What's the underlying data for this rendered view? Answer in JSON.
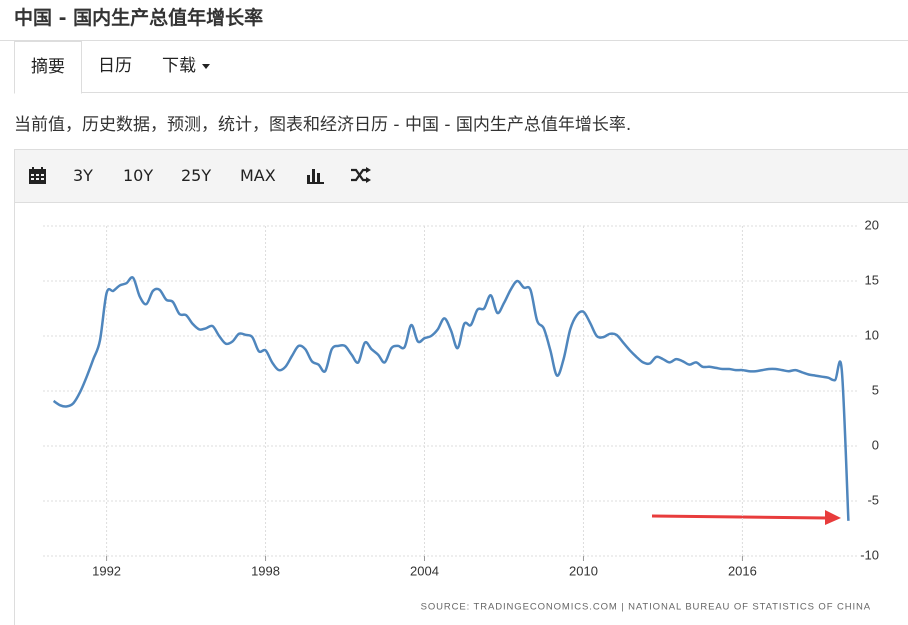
{
  "header": {
    "title": "中国 - 国内生产总值年增长率"
  },
  "tabs": [
    "摘要",
    "日历",
    "下载"
  ],
  "description": "当前值，历史数据，预测，统计，图表和经济日历 - 中国 - 国内生产总值年增长率.",
  "toolbar": [
    "3Y",
    "10Y",
    "25Y",
    "MAX"
  ],
  "chart_data": {
    "type": "line",
    "x": [
      1990,
      1990.25,
      1990.5,
      1990.75,
      1991,
      1991.25,
      1991.5,
      1991.75,
      1992,
      1992.25,
      1992.5,
      1992.75,
      1993,
      1993.25,
      1993.5,
      1993.75,
      1994,
      1994.25,
      1994.5,
      1994.75,
      1995,
      1995.25,
      1995.5,
      1995.75,
      1996,
      1996.25,
      1996.5,
      1996.75,
      1997,
      1997.25,
      1997.5,
      1997.75,
      1998,
      1998.25,
      1998.5,
      1998.75,
      1999,
      1999.25,
      1999.5,
      1999.75,
      2000,
      2000.25,
      2000.5,
      2000.75,
      2001,
      2001.25,
      2001.5,
      2001.75,
      2002,
      2002.25,
      2002.5,
      2002.75,
      2003,
      2003.25,
      2003.5,
      2003.75,
      2004,
      2004.25,
      2004.5,
      2004.75,
      2005,
      2005.25,
      2005.5,
      2005.75,
      2006,
      2006.25,
      2006.5,
      2006.75,
      2007,
      2007.25,
      2007.5,
      2007.75,
      2008,
      2008.25,
      2008.5,
      2008.75,
      2009,
      2009.25,
      2009.5,
      2009.75,
      2010,
      2010.25,
      2010.5,
      2010.75,
      2011,
      2011.25,
      2011.5,
      2011.75,
      2012,
      2012.25,
      2012.5,
      2012.75,
      2013,
      2013.25,
      2013.5,
      2013.75,
      2014,
      2014.25,
      2014.5,
      2014.75,
      2015,
      2015.25,
      2015.5,
      2015.75,
      2016,
      2016.25,
      2016.5,
      2016.75,
      2017,
      2017.25,
      2017.5,
      2017.75,
      2018,
      2018.25,
      2018.5,
      2018.75,
      2019,
      2019.25,
      2019.5,
      2019.75,
      2020
    ],
    "values": [
      4.1,
      3.7,
      3.6,
      3.9,
      4.9,
      6.3,
      7.9,
      9.6,
      13.9,
      14.1,
      14.6,
      14.8,
      15.3,
      13.6,
      12.9,
      14.1,
      14.2,
      13.3,
      13.1,
      12.0,
      11.9,
      11.1,
      10.6,
      10.7,
      10.9,
      10.0,
      9.3,
      9.5,
      10.2,
      10.1,
      9.9,
      8.6,
      8.7,
      7.6,
      6.9,
      7.2,
      8.2,
      9.1,
      8.8,
      7.7,
      7.4,
      6.8,
      8.8,
      9.1,
      9.1,
      8.3,
      7.6,
      9.4,
      8.8,
      8.3,
      7.6,
      8.9,
      9.1,
      9.0,
      11.0,
      9.5,
      9.8,
      10.0,
      10.6,
      11.6,
      10.5,
      8.9,
      11.1,
      11.0,
      12.4,
      12.5,
      13.7,
      12.1,
      13.0,
      14.2,
      15.0,
      14.4,
      14.2,
      11.4,
      10.7,
      8.7,
      6.4,
      7.9,
      10.6,
      11.9,
      12.2,
      11.2,
      10.0,
      9.9,
      10.2,
      10.1,
      9.4,
      8.7,
      8.1,
      7.6,
      7.5,
      8.1,
      7.9,
      7.6,
      7.9,
      7.7,
      7.4,
      7.6,
      7.2,
      7.2,
      7.1,
      7.0,
      7.0,
      6.9,
      6.9,
      6.8,
      6.8,
      6.9,
      7.0,
      7.0,
      6.9,
      6.8,
      6.9,
      6.7,
      6.5,
      6.4,
      6.3,
      6.2,
      6.0,
      6.9,
      -6.8
    ],
    "color": "#4f86bd",
    "xlim": [
      1989.6,
      2020.4
    ],
    "xticks": [
      1992,
      1998,
      2004,
      2010,
      2016
    ],
    "ylim": [
      -10,
      20
    ],
    "yticks": [
      -10,
      -5,
      0,
      5,
      10,
      15,
      20
    ],
    "grid": true,
    "source": "SOURCE: TRADINGECONOMICS.COM | NATIONAL BUREAU OF STATISTICS OF CHINA"
  }
}
